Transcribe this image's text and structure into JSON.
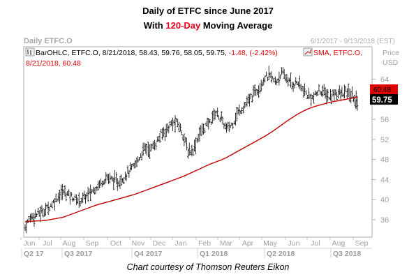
{
  "title": {
    "line1": "Daily of ETFC since June 2017",
    "line2_prefix": "With ",
    "line2_highlight": "120-Day",
    "line2_suffix": " Moving Average"
  },
  "header": {
    "left": "Daily ETFC.O",
    "right": "6/1/2017 - 9/13/2018 (EST)"
  },
  "legend": {
    "ohlc_text": "BarOHLC, ETFC.O, 8/21/2018, 58.43, 59.76, 58.05, 59.75,",
    "ohlc_change": "-1.48, (-2.42%)",
    "sma_text": "SMA, ETFC.O,",
    "sma_value": "8/21/2018, 60.48"
  },
  "price_axis": {
    "label_line1": "Price",
    "label_line2": "USD",
    "ticks": [
      "64",
      "60",
      "56",
      "52",
      "48",
      "44",
      "40",
      "36"
    ],
    "sma_tag": "60.48",
    "price_tag": "59.75"
  },
  "time_axis": {
    "months": [
      "Jun",
      "Jul",
      "Aug",
      "Sep",
      "Oct",
      "Nov",
      "Dec",
      "Jan",
      "Feb",
      "Mar",
      "Apr",
      "May",
      "Jun",
      "Jul",
      "Aug",
      "Sep"
    ],
    "quarters": [
      "Q2 17",
      "Q3 2017",
      "Q4 2017",
      "Q1 2018",
      "Q2 2018",
      "Q3 2018"
    ]
  },
  "caption": "Chart courtesy of Thomson Reuters Eikon",
  "colors": {
    "sma": "#c00000",
    "bars": "#000000",
    "highlight": "#e8001c",
    "tag_red": "#e00000"
  },
  "chart_data": {
    "type": "line",
    "series": [
      {
        "name": "ETFC.O",
        "values": [
          34.5,
          36.6,
          37.0,
          37.5,
          38.2,
          39.2,
          40.6,
          41.6,
          41.0,
          40.3,
          39.7,
          40.5,
          41.4,
          42.4,
          43.5,
          44.5,
          44.0,
          43.4,
          44.4,
          45.6,
          46.5,
          48.5,
          50.3,
          50.0,
          51.2,
          53.0,
          54.0,
          55.2,
          55.3,
          53.0,
          49.4,
          50.2,
          53.2,
          54.4,
          55.5,
          57.6,
          56.0,
          54.0,
          55.0,
          57.2,
          58.4,
          59.5,
          61.2,
          62.5,
          64.3,
          64.6,
          63.2,
          65.2,
          64.2,
          62.8,
          63.4,
          61.8,
          60.6,
          60.3,
          61.8,
          61.2,
          60.3,
          61.4,
          60.9,
          61.5,
          60.6,
          59.75
        ]
      },
      {
        "name": "SMA",
        "values": [
          35.6,
          35.7,
          35.75,
          35.8,
          35.9,
          36.1,
          36.3,
          36.5,
          36.9,
          37.3,
          37.7,
          38.1,
          38.5,
          38.9,
          39.2,
          39.5,
          39.8,
          40.1,
          40.4,
          40.7,
          41.0,
          41.4,
          41.8,
          42.2,
          42.6,
          43.0,
          43.4,
          43.8,
          44.2,
          44.6,
          45.1,
          45.6,
          46.1,
          46.6,
          47.1,
          47.5,
          47.9,
          48.4,
          49.0,
          49.6,
          50.2,
          50.8,
          51.4,
          52.0,
          52.6,
          53.3,
          54.0,
          54.8,
          55.6,
          56.3,
          57.0,
          57.6,
          58.1,
          58.5,
          58.8,
          59.1,
          59.4,
          59.6,
          59.8,
          60.0,
          60.2,
          60.48
        ]
      }
    ],
    "ylim": [
      34,
      68
    ],
    "grid": false,
    "xlabel": "",
    "ylabel": "Price USD"
  }
}
